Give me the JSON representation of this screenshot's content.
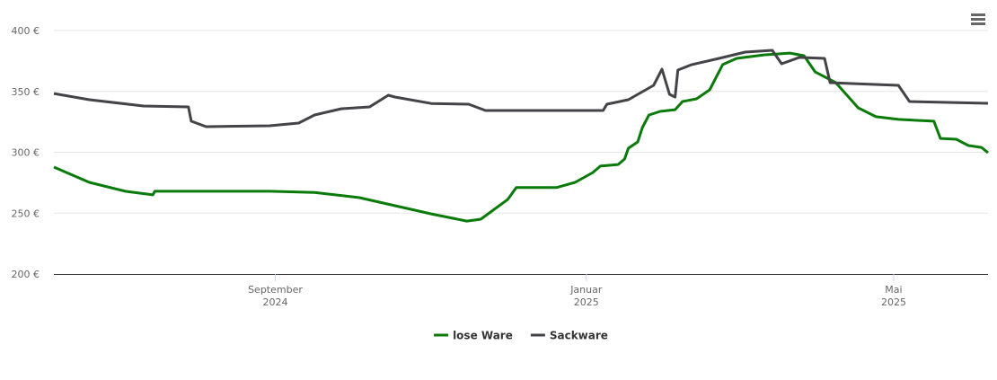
{
  "chart_data": {
    "type": "line",
    "xlim": [
      2024.43,
      2025.43
    ],
    "xticks": [
      {
        "value": 2024.667,
        "label": "September 2024"
      },
      {
        "value": 2025.0,
        "label": "Januar 2025"
      },
      {
        "value": 2025.329,
        "label": "Mai 2025"
      }
    ],
    "ylim": [
      200,
      400
    ],
    "yticks": [
      {
        "value": 200,
        "label": "200 €"
      },
      {
        "value": 250,
        "label": "250 €"
      },
      {
        "value": 300,
        "label": "300 €"
      },
      {
        "value": 350,
        "label": "350 €"
      },
      {
        "value": 400,
        "label": "400 €"
      }
    ],
    "grid": true,
    "legend": "bottom",
    "series": [
      {
        "name": "lose Ware",
        "color": "#0a7a0a",
        "x": [
          2024.43,
          2024.468,
          2024.507,
          2024.536,
          2024.538,
          2024.661,
          2024.709,
          2024.757,
          2024.834,
          2024.872,
          2024.887,
          2024.916,
          2024.925,
          2024.968,
          2024.988,
          2025.007,
          2025.015,
          2025.034,
          2025.041,
          2025.045,
          2025.055,
          2025.06,
          2025.067,
          2025.079,
          2025.095,
          2025.103,
          2025.118,
          2025.132,
          2025.146,
          2025.161,
          2025.19,
          2025.218,
          2025.233,
          2025.245,
          2025.267,
          2025.291,
          2025.31,
          2025.334,
          2025.372,
          2025.379,
          2025.396,
          2025.409,
          2025.423,
          2025.43
        ],
        "values": [
          287.8,
          275.3,
          267.9,
          265,
          268,
          268,
          267,
          262.7,
          249.4,
          243.5,
          245,
          261.3,
          271,
          271,
          275.3,
          283.4,
          288.6,
          290,
          294.5,
          303.3,
          308.5,
          320.3,
          330.6,
          333.6,
          335,
          341.7,
          343.9,
          351.3,
          372,
          377.1,
          380,
          381.5,
          379.3,
          366,
          357.2,
          336.5,
          329.2,
          327,
          325.5,
          311.4,
          310.7,
          305.5,
          304,
          299.6
        ]
      },
      {
        "name": "Sackware",
        "color": "#434348",
        "x": [
          2024.43,
          2024.468,
          2024.526,
          2024.574,
          2024.577,
          2024.593,
          2024.661,
          2024.692,
          2024.709,
          2024.738,
          2024.768,
          2024.788,
          2024.795,
          2024.834,
          2024.874,
          2024.892,
          2025.018,
          2025.022,
          2025.045,
          2025.072,
          2025.081,
          2025.089,
          2025.095,
          2025.098,
          2025.113,
          2025.142,
          2025.17,
          2025.199,
          2025.209,
          2025.228,
          2025.255,
          2025.261,
          2025.281,
          2025.334,
          2025.346,
          2025.43
        ],
        "values": [
          348.3,
          343.2,
          338,
          337.3,
          325.5,
          321,
          321.8,
          324,
          330.6,
          335.8,
          337.3,
          346.9,
          345.4,
          340.1,
          339.5,
          334.3,
          334.3,
          339.5,
          343.2,
          355,
          368.3,
          347.6,
          345.4,
          367.5,
          372,
          377.1,
          382.3,
          383.8,
          372.7,
          377.9,
          377.1,
          357.2,
          356.5,
          355,
          341.7,
          340.2
        ]
      }
    ]
  }
}
